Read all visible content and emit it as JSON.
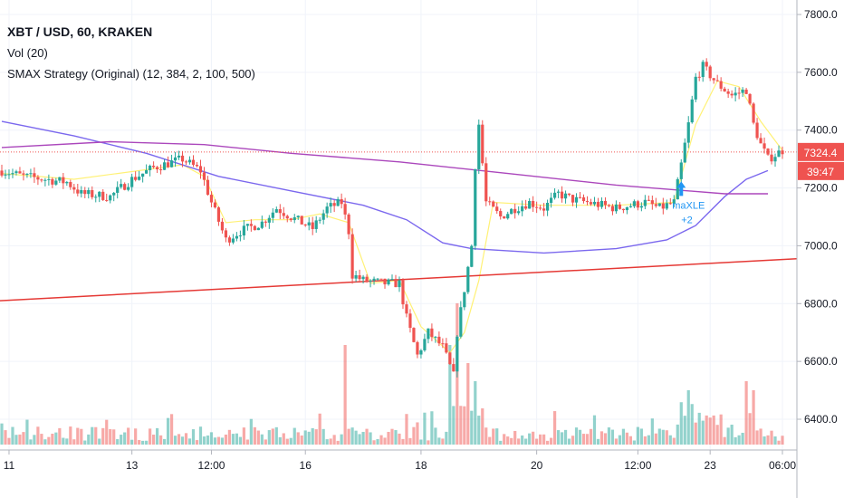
{
  "legend": {
    "symbol": "XBT / USD, 60, KRAKEN",
    "volume": "Vol (20)",
    "strategy": "SMAX Strategy (Original) (12, 384, 2, 100, 500)"
  },
  "price_badge": "7324.4",
  "countdown_badge": "39:47",
  "trade_signal": {
    "label": "maXLE",
    "qty": "+2"
  },
  "colors": {
    "up": "#26a69a",
    "down": "#ef5350",
    "fast_sma": "#fff176",
    "slow_sma": "#7b68ee",
    "long_sma": "#ab47bc",
    "trendline": "#e53935",
    "signal": "#2196f3",
    "price_line": "#ef5350"
  },
  "chart_data": {
    "type": "candlestick",
    "y_axis": {
      "ticks": [
        "7800.0",
        "7600.0",
        "7400.0",
        "7200.0",
        "7000.0",
        "6800.0",
        "6600.0",
        "6400.0"
      ],
      "range": [
        6310,
        7900
      ]
    },
    "x_axis": {
      "ticks": [
        "11",
        "13",
        "12:00",
        "16",
        "18",
        "20",
        "12:00",
        "23",
        "06:00"
      ]
    },
    "price_path": [
      [
        0,
        7260
      ],
      [
        6,
        7240
      ],
      [
        12,
        7230
      ],
      [
        18,
        7220
      ],
      [
        22,
        7180
      ],
      [
        30,
        7170
      ],
      [
        36,
        7230
      ],
      [
        42,
        7270
      ],
      [
        50,
        7300
      ],
      [
        55,
        7260
      ],
      [
        58,
        7150
      ],
      [
        62,
        7020
      ],
      [
        66,
        7050
      ],
      [
        72,
        7080
      ],
      [
        76,
        7130
      ],
      [
        80,
        7100
      ],
      [
        86,
        7060
      ],
      [
        90,
        7130
      ],
      [
        94,
        7150
      ],
      [
        96,
        7050
      ],
      [
        97,
        6900
      ],
      [
        100,
        6880
      ],
      [
        106,
        6870
      ],
      [
        110,
        6870
      ],
      [
        112,
        6750
      ],
      [
        115,
        6620
      ],
      [
        118,
        6700
      ],
      [
        122,
        6650
      ],
      [
        125,
        6550
      ],
      [
        126,
        6700
      ],
      [
        128,
        6850
      ],
      [
        130,
        7000
      ],
      [
        131,
        7280
      ],
      [
        132,
        7420
      ],
      [
        134,
        7150
      ],
      [
        138,
        7100
      ],
      [
        142,
        7130
      ],
      [
        146,
        7150
      ],
      [
        150,
        7130
      ],
      [
        154,
        7180
      ],
      [
        158,
        7160
      ],
      [
        162,
        7150
      ],
      [
        166,
        7140
      ],
      [
        170,
        7130
      ],
      [
        174,
        7140
      ],
      [
        178,
        7150
      ],
      [
        182,
        7130
      ],
      [
        186,
        7150
      ],
      [
        188,
        7280
      ],
      [
        190,
        7420
      ],
      [
        192,
        7580
      ],
      [
        194,
        7620
      ],
      [
        198,
        7560
      ],
      [
        202,
        7520
      ],
      [
        206,
        7540
      ],
      [
        208,
        7420
      ],
      [
        210,
        7350
      ],
      [
        212,
        7300
      ],
      [
        216,
        7330
      ]
    ],
    "series": [
      {
        "name": "fast SMA",
        "points": [
          [
            0,
            7250
          ],
          [
            20,
            7230
          ],
          [
            50,
            7280
          ],
          [
            56,
            7240
          ],
          [
            62,
            7080
          ],
          [
            70,
            7090
          ],
          [
            80,
            7090
          ],
          [
            88,
            7110
          ],
          [
            96,
            7080
          ],
          [
            102,
            6870
          ],
          [
            110,
            6880
          ],
          [
            116,
            6720
          ],
          [
            124,
            6630
          ],
          [
            128,
            6700
          ],
          [
            132,
            6880
          ],
          [
            136,
            7150
          ],
          [
            150,
            7140
          ],
          [
            170,
            7140
          ],
          [
            186,
            7150
          ],
          [
            192,
            7420
          ],
          [
            198,
            7570
          ],
          [
            204,
            7550
          ],
          [
            210,
            7430
          ],
          [
            216,
            7330
          ]
        ]
      },
      {
        "name": "slow SMA",
        "points": [
          [
            0,
            7430
          ],
          [
            20,
            7380
          ],
          [
            40,
            7320
          ],
          [
            60,
            7240
          ],
          [
            80,
            7190
          ],
          [
            100,
            7140
          ],
          [
            112,
            7090
          ],
          [
            122,
            7010
          ],
          [
            130,
            6990
          ],
          [
            150,
            6975
          ],
          [
            170,
            6990
          ],
          [
            184,
            7020
          ],
          [
            192,
            7070
          ],
          [
            200,
            7170
          ],
          [
            206,
            7230
          ],
          [
            212,
            7260
          ]
        ]
      },
      {
        "name": "long SMA",
        "points": [
          [
            0,
            7340
          ],
          [
            30,
            7360
          ],
          [
            56,
            7350
          ],
          [
            80,
            7320
          ],
          [
            110,
            7290
          ],
          [
            140,
            7250
          ],
          [
            170,
            7210
          ],
          [
            200,
            7180
          ],
          [
            212,
            7180
          ]
        ]
      },
      {
        "name": "trendline",
        "points": [
          [
            0,
            6810
          ],
          [
            216,
            6955
          ]
        ]
      }
    ],
    "volume_spikes": [
      [
        95,
        0.55
      ],
      [
        124,
        0.55
      ],
      [
        126,
        0.78
      ],
      [
        129,
        0.45
      ],
      [
        131,
        0.35
      ],
      [
        190,
        0.3
      ],
      [
        206,
        0.35
      ],
      [
        208,
        0.3
      ]
    ],
    "horizontal_line": 7324.4,
    "signal_at": [
      188,
      7185
    ]
  }
}
